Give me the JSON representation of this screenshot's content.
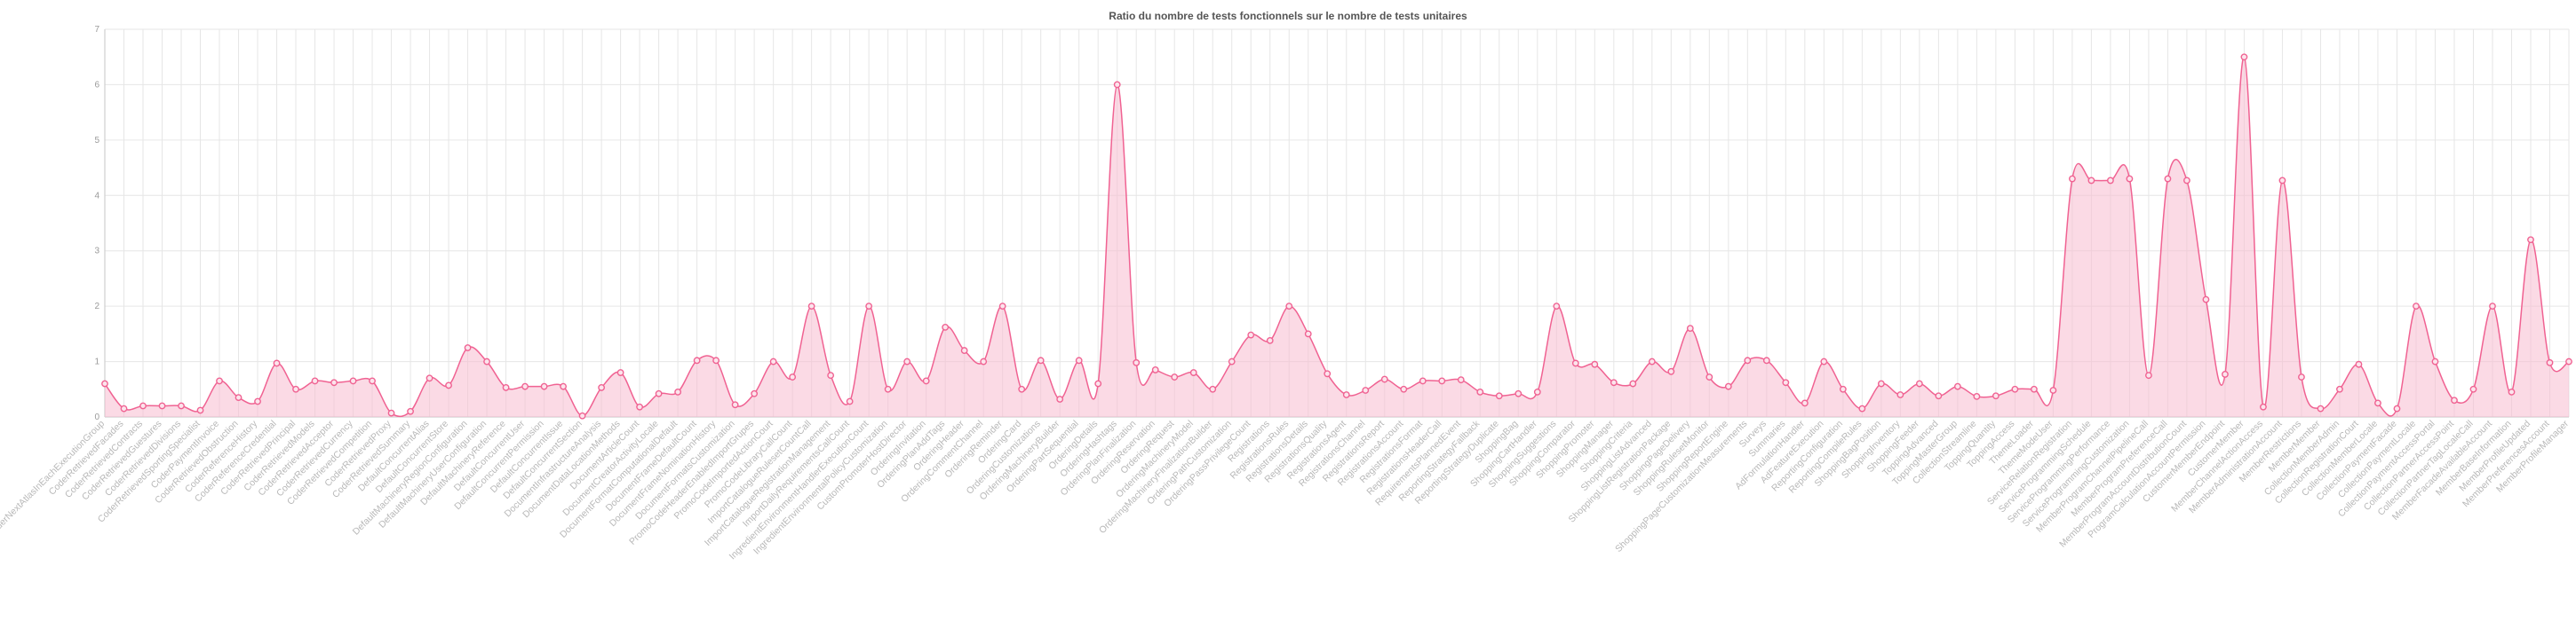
{
  "chart_data": {
    "type": "area",
    "title": "Ratio du nombre de tests fonctionnels sur le nombre de tests unitaires",
    "xlabel": "",
    "ylabel": "",
    "ylim": [
      0,
      7
    ],
    "yticks": [
      "0",
      "1",
      "2",
      "3",
      "4",
      "5",
      "6",
      "7"
    ],
    "grid": true,
    "colors": {
      "line": "#f06292",
      "fill": "#f8bbd0",
      "marker": "#f06292"
    },
    "categories": [
      "CoderNextAtlasInEachExecutionGroup",
      "CoderRetrievedFacades",
      "CoderRetrievedContracts",
      "CoderRetrievedGuestures",
      "CoderRetrievedDivisions",
      "CoderRetrievedSportingSpecialist",
      "CoderPaymentInvoice",
      "CoderRetrievedObstruction",
      "CoderReferenceHistory",
      "CoderReferenceCredential",
      "CoderRetrievedPrincipal",
      "CoderRetrievedModels",
      "CoderRetrievedAcceptor",
      "CoderRetrievedCurrency",
      "CoderRetrievedCompetition",
      "CoderRetrievedProxy",
      "CoderRetrievedSummary",
      "DefaultConcurrentAlias",
      "DefaultConcurrentStore",
      "DefaultMachineryRegionConfiguration",
      "DefaultMachineryUserConfiguration",
      "DefaultMachineryReference",
      "DefaultConcurrentUser",
      "DefaultConcurrentPermission",
      "DefaultConcurrentIssue",
      "DefaultConcurrentSection",
      "DocumentInfrastructureAnalysis",
      "DocumentDataLocationMethods",
      "DocumentArticleCount",
      "DocumentCreatorActivityLocale",
      "DocumentFormatComputationalDefault",
      "DocumentFrameDefaultCount",
      "DocumentFrameNominationHistory",
      "DocumentFormatsCustomization",
      "PromoCodeHeaderEnabledImportGrupes",
      "PromoCodeImportedActionCourt",
      "PromoCodeLibraryCallCount",
      "ImportCatalogueRulesetCountCall",
      "ImportCatalogueRegistrationManagement",
      "ImportDailyRequirementsCallCount",
      "IngredientEnvironmentHandlerExecutionCount",
      "IngredientEnvironmentalPolicyCustomization",
      "CustomPromoterHostDirector",
      "OrderingInvitation",
      "OrderingPlanAddTags",
      "OrderingHeader",
      "OrderingCommentChannel",
      "OrderingReminder",
      "OrderingCard",
      "OrderingCustomizations",
      "OrderingMachineryBuilder",
      "OrderingPartSequential",
      "OrderingDetails",
      "OrderingHashtags",
      "OrderingPlanFinalization",
      "OrderingReservation",
      "OrderingRequest",
      "OrderingMachineryModel",
      "OrderingMachineryFinalizationBuilder",
      "OrderingPathCustomization",
      "OrderingPassPrivilegeCount",
      "Registrations",
      "RegistrationsRules",
      "RegistrationsDetails",
      "RegistrationsQuality",
      "RegistrationsAgent",
      "RegistrationsChannel",
      "RegistrationsReport",
      "RegistrationsAccount",
      "RegistrationsFormat",
      "RegistrationsHeaderCall",
      "RequirementsPlannedEvent",
      "ReportingStrategyFallback",
      "ReportingStrategyDuplicate",
      "ShoppingBag",
      "ShoppingCartHandler",
      "ShoppingSuggestions",
      "ShoppingComparator",
      "ShoppingPromoter",
      "ShoppingManager",
      "ShoppingCriteria",
      "ShoppingListAdvanced",
      "ShoppingListRegistrationPackage",
      "ShoppingPageDelivery",
      "ShoppingRulesetMonitor",
      "ShoppingReportEngine",
      "ShoppingPageCustomizationMeasurements",
      "Surveys",
      "Summaries",
      "AdFormulationHandler",
      "AdFeatureExecution",
      "ReportingConfiguration",
      "ReportingCompileRules",
      "ShoppingBagPosition",
      "ShoppingInventory",
      "ShoppingFeeder",
      "ToppingAdvanced",
      "ToppingMasterGroup",
      "CollectionStreamline",
      "ToppingQuantity",
      "ToppingAccess",
      "ThemeLoader",
      "ThemeModeUser",
      "ServiceRelationRegistration",
      "ServiceProgrammingSchedule",
      "ServiceProgrammingPerformance",
      "ServiceProgrammingCustomization",
      "MemberProgramChannelPipelineCall",
      "MemberProgramPreferenceCall",
      "MemberProgramAccountDistributionCount",
      "ProgramCalculationAccountPermission",
      "CustomerMemberEndpoint",
      "CustomerMember",
      "MemberChannelActionAccess",
      "MemberAdministrationAccount",
      "MemberRestrictions",
      "MemberMember",
      "CollectionMemberAdmin",
      "CollectionRegistrationCourt",
      "CollectionMemberLocale",
      "CollectionPaymentFacade",
      "CollectionPaymentLocale",
      "CollectionPaymentAccessPortal",
      "CollectionPartnerAccessPoint",
      "CollectionPartnerTagLocaleCall",
      "MemberFacadeAvailableAccount",
      "MemberBaseInformation",
      "MemberProfileUpdated",
      "MemberPreferencesAccount",
      "MemberProfileManager"
    ],
    "values": [
      0.6,
      0.15,
      0.2,
      0.2,
      0.2,
      0.12,
      0.65,
      0.35,
      0.28,
      0.97,
      0.5,
      0.65,
      0.62,
      0.65,
      0.65,
      0.07,
      0.1,
      0.7,
      0.57,
      1.25,
      1.0,
      0.53,
      0.55,
      0.55,
      0.55,
      0.02,
      0.53,
      0.8,
      0.18,
      0.42,
      0.45,
      1.02,
      1.02,
      0.22,
      0.42,
      1.0,
      0.72,
      2.0,
      0.75,
      0.28,
      2.0,
      0.5,
      1.0,
      0.65,
      1.62,
      1.2,
      1.0,
      2.0,
      0.5,
      1.02,
      0.32,
      1.02,
      0.6,
      6.0,
      0.98,
      0.85,
      0.72,
      0.8,
      0.5,
      1.0,
      1.48,
      1.38,
      2.0,
      1.5,
      0.78,
      0.4,
      0.48,
      0.68,
      0.5,
      0.65,
      0.65,
      0.67,
      0.45,
      0.38,
      0.42,
      0.45,
      2.0,
      0.97,
      0.95,
      0.62,
      0.6,
      1.0,
      0.82,
      1.6,
      0.72,
      0.55,
      1.02,
      1.02,
      0.62,
      0.25,
      1.0,
      0.5,
      0.15,
      0.6,
      0.4,
      0.6,
      0.38,
      0.55,
      0.37,
      0.38,
      0.5,
      0.5,
      0.48,
      4.3,
      4.27,
      4.27,
      4.3,
      0.75,
      4.3,
      4.27,
      2.12,
      0.77,
      6.5,
      0.18,
      4.27,
      0.72,
      0.15,
      0.5,
      0.95,
      0.25,
      0.15,
      2.0,
      1.0,
      0.3,
      0.5,
      2.0,
      0.45,
      3.2,
      0.98,
      1.0
    ]
  }
}
